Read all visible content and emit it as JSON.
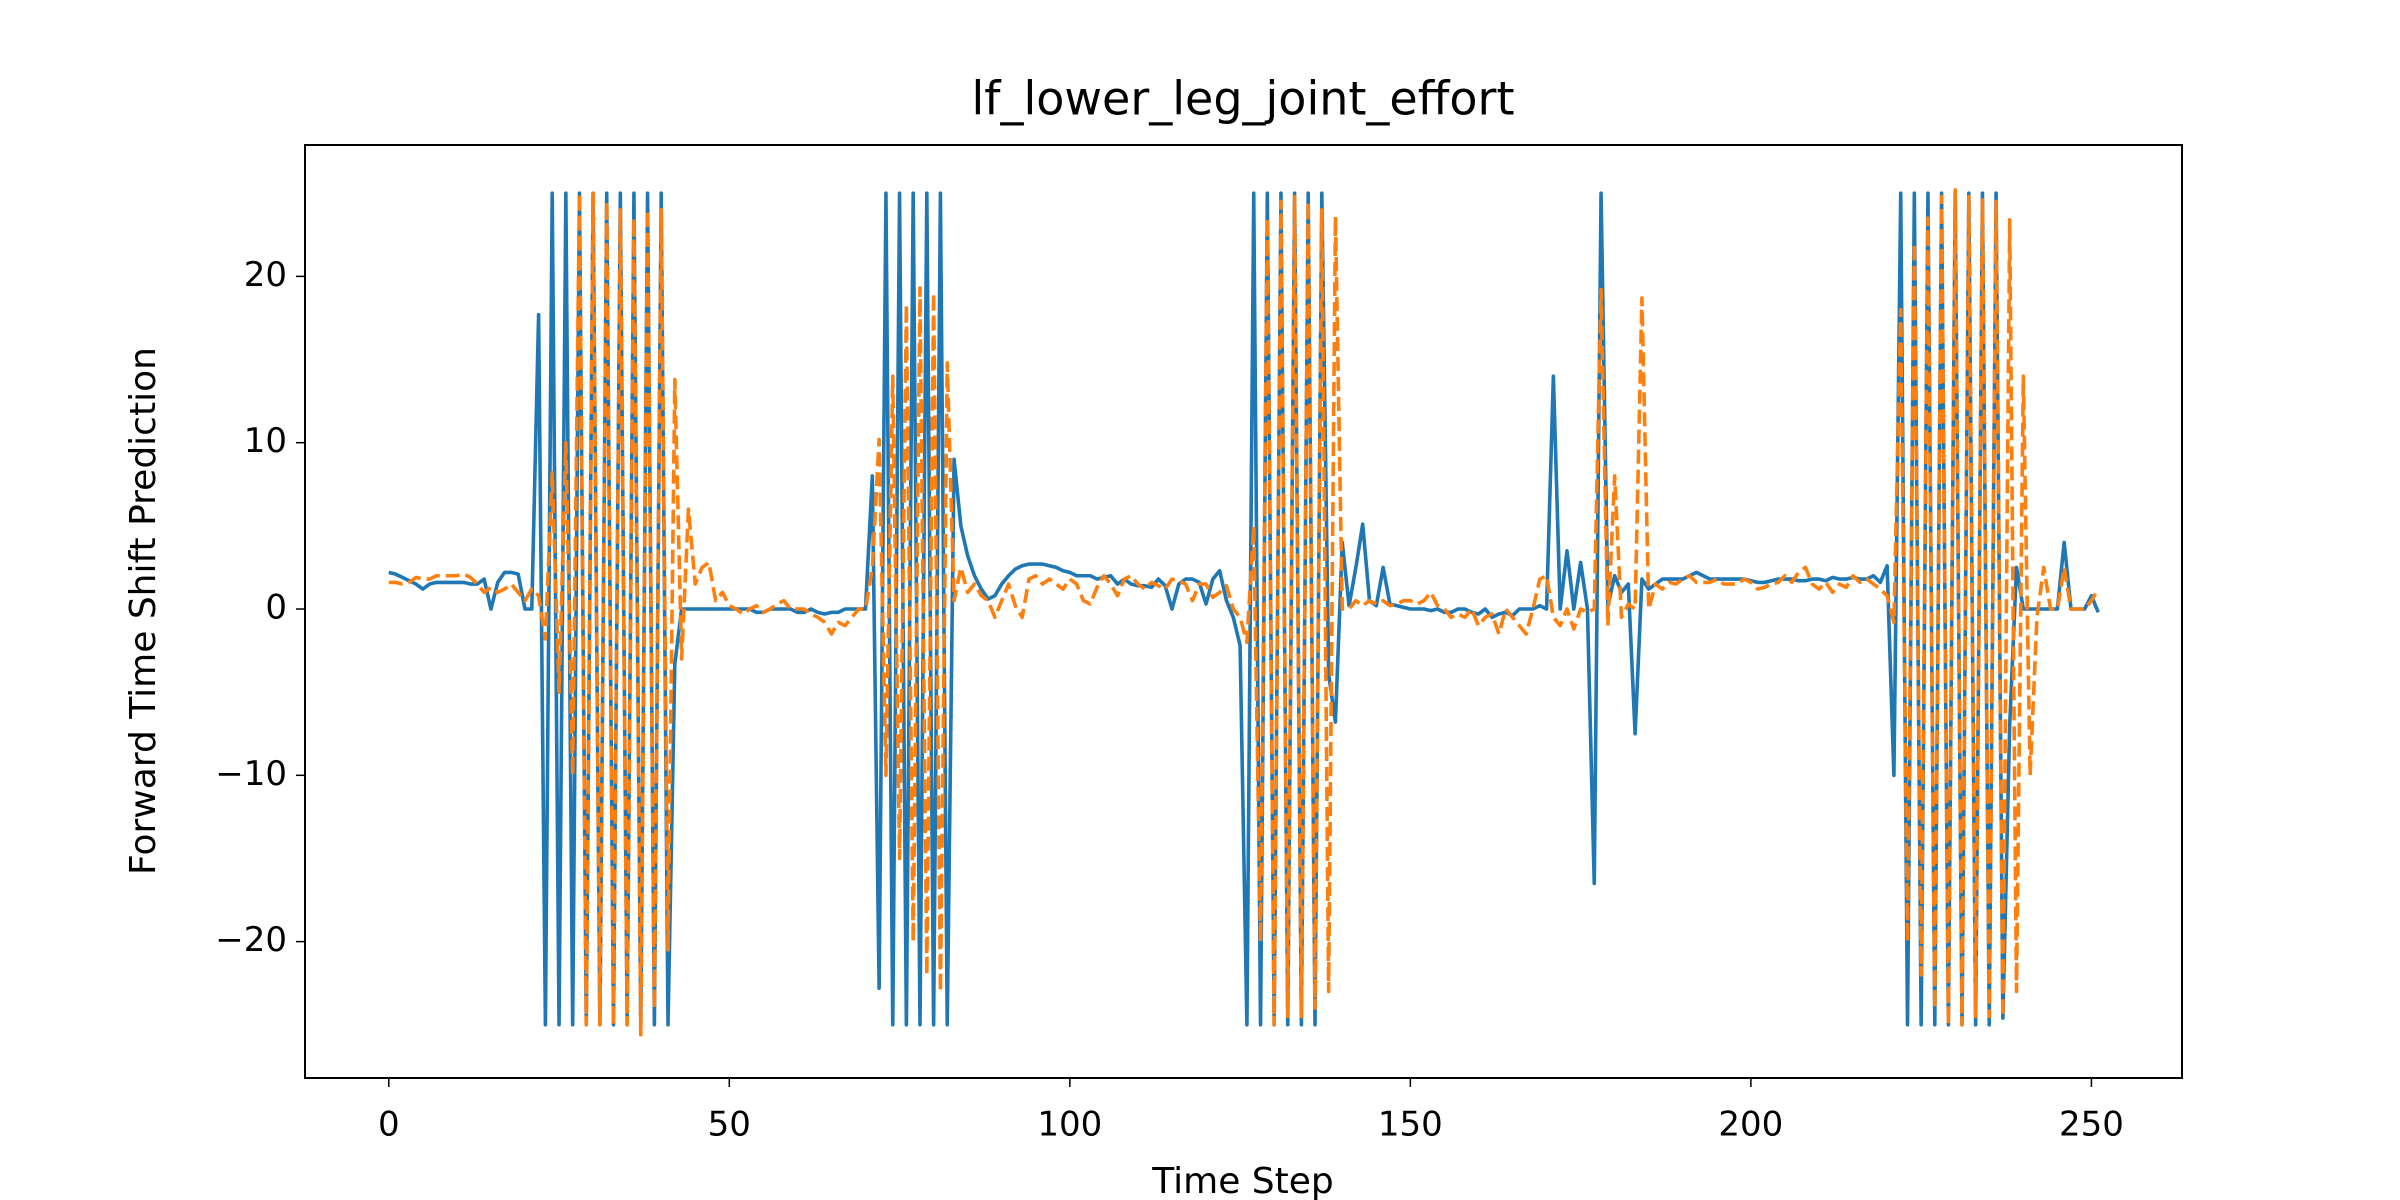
{
  "chart_data": {
    "type": "line",
    "title": "lf_lower_leg_joint_effort",
    "x_label": "Time Step",
    "y_label": "Forward Time Shift Prediction",
    "xlim": [
      -12.3,
      263.3
    ],
    "ylim": [
      -28.2,
      27.9
    ],
    "xticks": [
      0,
      50,
      100,
      150,
      200,
      250
    ],
    "yticks": [
      {
        "value": -20,
        "label": "−20"
      },
      {
        "value": -10,
        "label": "−10"
      },
      0,
      10,
      20
    ],
    "x": [
      0,
      1,
      2,
      3,
      4,
      5,
      6,
      7,
      8,
      9,
      10,
      11,
      12,
      13,
      14,
      15,
      16,
      17,
      18,
      19,
      20,
      21,
      22,
      23,
      24,
      25,
      26,
      27,
      28,
      29,
      30,
      31,
      32,
      33,
      34,
      35,
      36,
      37,
      38,
      39,
      40,
      41,
      42,
      43,
      44,
      45,
      46,
      47,
      48,
      49,
      50,
      51,
      52,
      53,
      54,
      55,
      56,
      57,
      58,
      59,
      60,
      61,
      62,
      63,
      64,
      65,
      66,
      67,
      68,
      69,
      70,
      71,
      72,
      73,
      74,
      75,
      76,
      77,
      78,
      79,
      80,
      81,
      82,
      83,
      84,
      85,
      86,
      87,
      88,
      89,
      90,
      91,
      92,
      93,
      94,
      95,
      96,
      97,
      98,
      99,
      100,
      101,
      102,
      103,
      104,
      105,
      106,
      107,
      108,
      109,
      110,
      111,
      112,
      113,
      114,
      115,
      116,
      117,
      118,
      119,
      120,
      121,
      122,
      123,
      124,
      125,
      126,
      127,
      128,
      129,
      130,
      131,
      132,
      133,
      134,
      135,
      136,
      137,
      138,
      139,
      140,
      141,
      142,
      143,
      144,
      145,
      146,
      147,
      148,
      149,
      150,
      151,
      152,
      153,
      154,
      155,
      156,
      157,
      158,
      159,
      160,
      161,
      162,
      163,
      164,
      165,
      166,
      167,
      168,
      169,
      170,
      171,
      172,
      173,
      174,
      175,
      176,
      177,
      178,
      179,
      180,
      181,
      182,
      183,
      184,
      185,
      186,
      187,
      188,
      189,
      190,
      191,
      192,
      193,
      194,
      195,
      196,
      197,
      198,
      199,
      200,
      201,
      202,
      203,
      204,
      205,
      206,
      207,
      208,
      209,
      210,
      211,
      212,
      213,
      214,
      215,
      216,
      217,
      218,
      219,
      220,
      221,
      222,
      223,
      224,
      225,
      226,
      227,
      228,
      229,
      230,
      231,
      232,
      233,
      234,
      235,
      236,
      237,
      238,
      239,
      240,
      241,
      242,
      243,
      244,
      245,
      246,
      247,
      248,
      249,
      250,
      251
    ],
    "series": [
      {
        "color": "#1f77b4",
        "dash": false,
        "values": [
          2.2,
          2.1,
          1.9,
          1.7,
          1.5,
          1.2,
          1.5,
          1.6,
          1.6,
          1.6,
          1.6,
          1.6,
          1.5,
          1.5,
          1.8,
          0,
          1.6,
          2.2,
          2.2,
          2.1,
          0,
          0,
          17.7,
          -25,
          25,
          -25,
          25,
          -25,
          25,
          -25,
          25,
          -25,
          25,
          -25,
          25,
          -25,
          25,
          -25,
          25,
          -25,
          25,
          -25,
          -3.3,
          0,
          0,
          0,
          0,
          0,
          0,
          0,
          0,
          0,
          0,
          0,
          -0.2,
          -0.2,
          0,
          0,
          0,
          0,
          -0.2,
          -0.2,
          0,
          -0.2,
          -0.3,
          -0.2,
          -0.2,
          0,
          0,
          0,
          0,
          8,
          -22.8,
          25,
          -25,
          25,
          -25,
          25,
          -25,
          25,
          -25,
          25,
          -25,
          9,
          5,
          3.2,
          2,
          1.2,
          0.6,
          0.8,
          1.5,
          2,
          2.4,
          2.6,
          2.7,
          2.7,
          2.7,
          2.6,
          2.5,
          2.3,
          2.2,
          2,
          2,
          2,
          1.8,
          1.9,
          2,
          1.5,
          1.8,
          1.5,
          1.4,
          1.4,
          1.3,
          1.8,
          1.4,
          0,
          1.5,
          1.8,
          1.8,
          1.6,
          0.3,
          1.8,
          2.3,
          0.5,
          -0.5,
          -2.2,
          -25,
          25,
          -25,
          25,
          -25,
          25,
          -25,
          25,
          -25,
          25,
          -25,
          25,
          -3.9,
          -6.8,
          4,
          0.2,
          2.5,
          5.1,
          0.5,
          0.2,
          2.5,
          0.3,
          0.2,
          0.1,
          0,
          0,
          0,
          -0.1,
          0,
          -0.2,
          -0.2,
          0,
          0,
          -0.2,
          -0.3,
          0,
          -0.5,
          -0.3,
          -0.2,
          -0.4,
          0,
          0,
          0,
          0.2,
          0,
          14,
          0,
          3.5,
          0,
          2.8,
          0,
          -16.5,
          25,
          0.2,
          2,
          1,
          1.5,
          -7.5,
          1.8,
          1.2,
          1.5,
          1.8,
          1.8,
          1.8,
          1.8,
          2,
          2.2,
          2,
          1.8,
          1.8,
          1.8,
          1.8,
          1.8,
          1.8,
          1.7,
          1.6,
          1.6,
          1.7,
          1.8,
          1.8,
          1.8,
          1.7,
          1.7,
          1.8,
          1.8,
          1.7,
          1.9,
          1.8,
          1.8,
          1.9,
          1.8,
          1.8,
          2,
          1.6,
          2.6,
          -10,
          25,
          -25,
          25,
          -25,
          25,
          -25,
          25,
          -25,
          25,
          -25,
          25,
          -25,
          25,
          -25,
          25,
          -24.6,
          -7,
          2.5,
          0,
          0,
          0,
          0,
          0,
          0,
          4,
          0,
          0,
          0,
          0.8,
          -0.2
        ]
      },
      {
        "color": "#ff7f0e",
        "dash": true,
        "values": [
          1.6,
          1.6,
          1.5,
          1.6,
          1.9,
          1.8,
          1.8,
          2,
          2,
          2,
          2,
          2.1,
          1.9,
          1.5,
          1,
          1.3,
          1,
          1.2,
          1.5,
          1,
          0.5,
          1.2,
          0.8,
          -1.8,
          8.2,
          -5,
          10,
          -10,
          25,
          -25,
          25,
          -25,
          24.5,
          -25,
          24,
          -25,
          23.5,
          -25.6,
          24,
          -24,
          24,
          -20.5,
          13.8,
          -3,
          6,
          1.5,
          2.5,
          2.8,
          0.5,
          1,
          0.2,
          0,
          -0.3,
          0,
          0.2,
          -0.2,
          0,
          0.3,
          0.5,
          0,
          0,
          0,
          -0.3,
          -0.5,
          -0.8,
          -1.5,
          -0.8,
          -1,
          -0.5,
          0,
          0,
          2.5,
          10.2,
          -10,
          14,
          -15,
          18.3,
          -20,
          19.3,
          -22,
          19,
          -23,
          14.8,
          0.5,
          2.5,
          1,
          1.5,
          0.8,
          0.5,
          -0.5,
          0.5,
          1.5,
          0.2,
          -0.5,
          1.8,
          2,
          1.5,
          1.8,
          1.5,
          1.2,
          1.8,
          1.5,
          0.5,
          0.3,
          1.3,
          2,
          1.5,
          0.8,
          1.8,
          2,
          1.5,
          1.2,
          1.6,
          1.4,
          1.2,
          1.8,
          1.7,
          1.5,
          0.5,
          1.5,
          1.5,
          0.7,
          1,
          1.4,
          0,
          -0.5,
          -2,
          5,
          -20,
          23.5,
          -25,
          24.5,
          -24.5,
          24.8,
          -24.5,
          24.5,
          -24,
          24,
          -23,
          23.6,
          0,
          0,
          0.5,
          0.2,
          0.5,
          0.3,
          0.5,
          0.2,
          0.3,
          0.5,
          0.5,
          0.3,
          0.5,
          1,
          0.2,
          0,
          -0.5,
          -0.3,
          -0.5,
          0,
          -1,
          -0.5,
          -0.3,
          -1.5,
          0,
          -0.5,
          -1,
          -1.5,
          0,
          1.8,
          2,
          -0.5,
          -1,
          0,
          -1.2,
          0,
          -0.2,
          0,
          19.2,
          -1,
          8,
          -0.5,
          0.3,
          0,
          18.7,
          0,
          1.5,
          1.2,
          1.6,
          1.5,
          1.8,
          2,
          1.6,
          1.6,
          1.6,
          1.8,
          1.5,
          1.5,
          1.5,
          1.8,
          1.6,
          1.2,
          1.3,
          1.5,
          1.6,
          2,
          1.6,
          2.2,
          2.5,
          1.5,
          1.2,
          1.6,
          1,
          1.5,
          1.3,
          2,
          1.6,
          1.8,
          1.5,
          1.2,
          0.8,
          -0.8,
          18,
          -20,
          22,
          -22,
          23.5,
          -24,
          24.8,
          -25,
          25.2,
          -25,
          24.8,
          -24.5,
          24.6,
          -24.5,
          24.5,
          -24.5,
          23.4,
          -23,
          14,
          -10,
          -0.5,
          2.5,
          0,
          0,
          2.5,
          0,
          0,
          0,
          0.5,
          1.2
        ]
      }
    ]
  }
}
